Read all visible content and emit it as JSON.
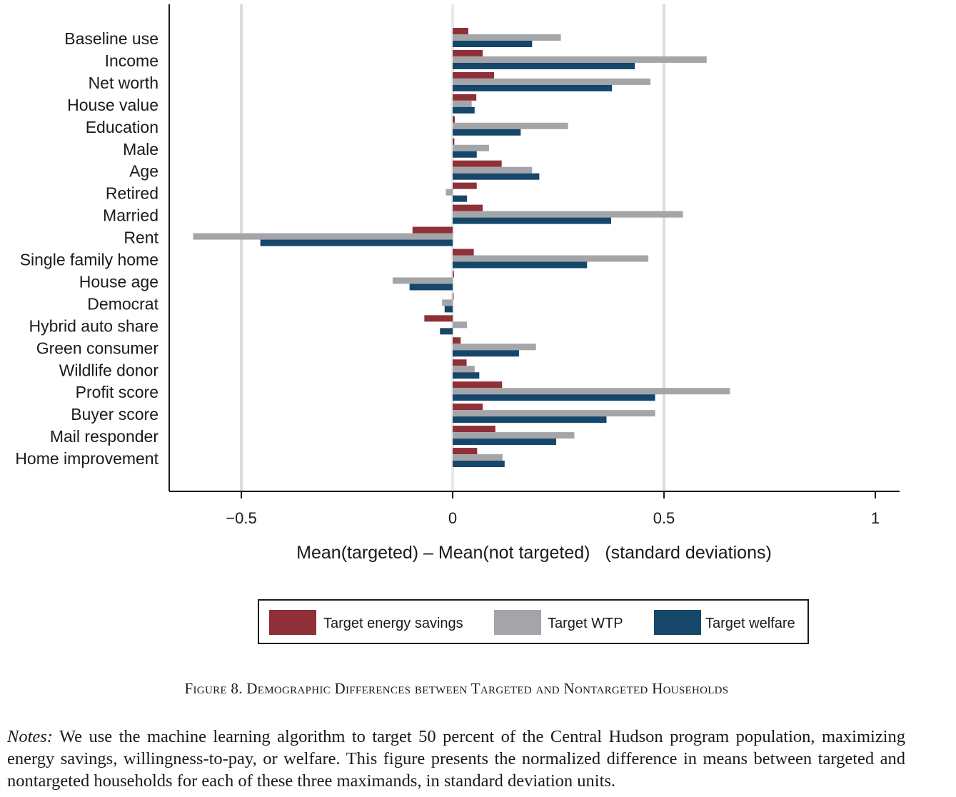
{
  "chart_data": {
    "type": "bar",
    "orientation": "horizontal",
    "categories": [
      "Baseline use",
      "Income",
      "Net worth",
      "House value",
      "Education",
      "Male",
      "Age",
      "Retired",
      "Married",
      "Rent",
      "Single family home",
      "House age",
      "Democrat",
      "Hybrid auto share",
      "Green consumer",
      "Wildlife donor",
      "Profit score",
      "Buyer score",
      "Mail responder",
      "Home improvement"
    ],
    "series": [
      {
        "name": "Target energy savings",
        "color": "#8f3039",
        "values": [
          0.037,
          0.071,
          0.098,
          0.056,
          0.005,
          0.004,
          0.116,
          0.057,
          0.071,
          -0.095,
          0.05,
          0.003,
          0.002,
          -0.067,
          0.019,
          0.033,
          0.117,
          0.071,
          0.101,
          0.058
        ]
      },
      {
        "name": "Target WTP",
        "color": "#a4a5a8",
        "values": [
          0.256,
          0.601,
          0.468,
          0.045,
          0.273,
          0.086,
          0.188,
          -0.016,
          0.545,
          -0.614,
          0.463,
          -0.142,
          -0.025,
          0.034,
          0.197,
          0.052,
          0.656,
          0.479,
          0.288,
          0.118
        ]
      },
      {
        "name": "Target welfare",
        "color": "#17466b",
        "values": [
          0.188,
          0.431,
          0.377,
          0.052,
          0.161,
          0.057,
          0.205,
          0.034,
          0.375,
          -0.455,
          0.318,
          -0.102,
          -0.019,
          -0.03,
          0.157,
          0.063,
          0.479,
          0.364,
          0.245,
          0.123
        ]
      }
    ],
    "xlabel": "Mean(targeted) – Mean(not targeted)   (standard deviations)",
    "xlim": [
      -0.67,
      1.06
    ],
    "xticks": [
      -0.5,
      0,
      0.5,
      1
    ],
    "xtick_labels": [
      "−0.5",
      "0",
      "0.5",
      "1"
    ],
    "grid": "vertical at x ticks",
    "legend_placement": "bottom"
  },
  "caption": "Figure 8. Demographic Differences between Targeted and Nontargeted Households",
  "notes": {
    "lead": "Notes:",
    "text": " We use the machine learning algorithm to target 50 percent of the Central Hudson program population, maximizing energy savings, willingness-to-pay, or welfare. This figure presents the normalized difference in means between targeted and nontargeted households for each of these three maximands, in standard deviation units."
  }
}
